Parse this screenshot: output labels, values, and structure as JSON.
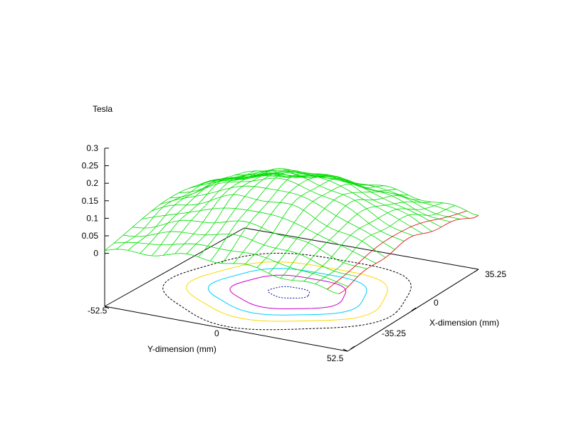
{
  "chart_data": {
    "type": "surface",
    "z_title": "Tesla",
    "xlabel": "X-dimension (mm)",
    "ylabel": "Y-dimension (mm)",
    "z_ticks": [
      "0.3",
      "0.25",
      "0.2",
      "0.15",
      "0.1",
      "0.05",
      "0"
    ],
    "zlim": [
      0,
      0.3
    ],
    "x_ticks": [
      "35.25",
      "0",
      "-35.25"
    ],
    "xlim": [
      -35.25,
      35.25
    ],
    "y_ticks": [
      "-52.5",
      "0",
      "52.5"
    ],
    "ylim": [
      -52.5,
      52.5
    ],
    "grid": "15x20 mesh",
    "surface_description": "peaked field distribution, max about 0.3 T near the center",
    "contours": [
      {
        "level": 0.05,
        "color": "#000000"
      },
      {
        "level": 0.1,
        "color": "#ffd700"
      },
      {
        "level": 0.15,
        "color": "#00ccff"
      },
      {
        "level": 0.2,
        "color": "#cc00cc"
      },
      {
        "level": 0.25,
        "color": "#000099"
      }
    ],
    "colors": {
      "surface_top": "#00dd00",
      "surface_bottom": "#dd0000"
    }
  }
}
